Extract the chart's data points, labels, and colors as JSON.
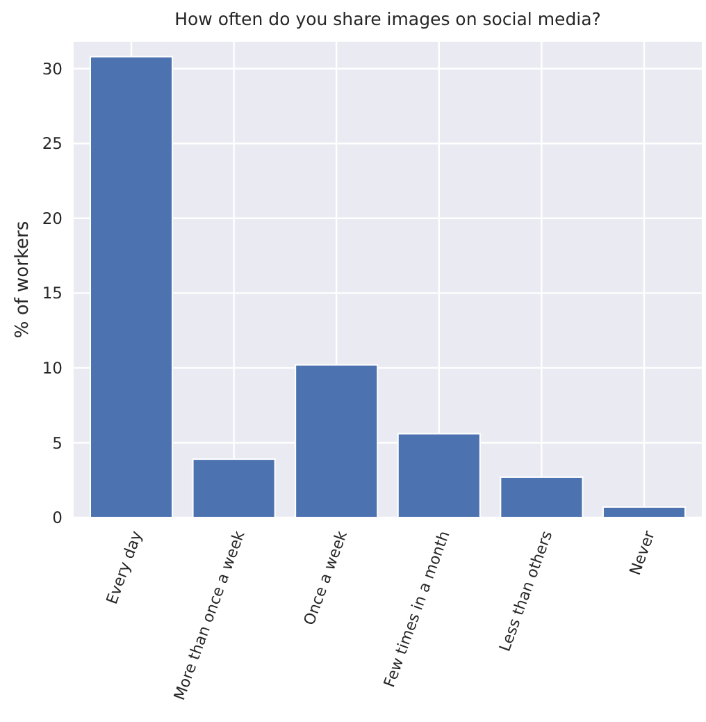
{
  "chart_data": {
    "type": "bar",
    "title": "How often do you share images on social media?",
    "ylabel": "% of workers",
    "categories": [
      "Every day",
      "More than once a week",
      "Once a week",
      "Few times in a month",
      "Less than others",
      "Never"
    ],
    "values": [
      30.8,
      3.9,
      10.2,
      5.6,
      2.7,
      0.7
    ],
    "color": "#4c72b0",
    "ylim": [
      0,
      31.8
    ],
    "yticks": [
      0,
      5,
      10,
      15,
      20,
      25,
      30
    ],
    "grid": true
  }
}
